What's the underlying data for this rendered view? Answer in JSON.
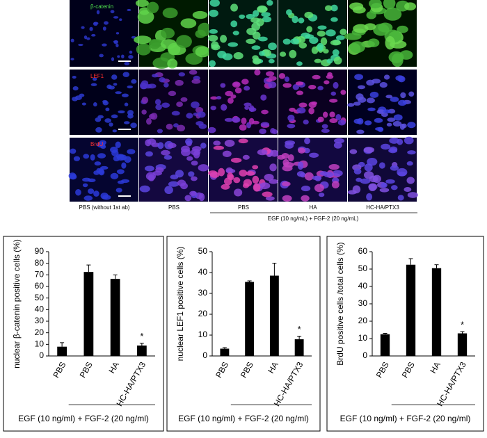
{
  "micrographs": {
    "row_labels": [
      "β-catenin",
      "LEF1",
      "BrdU"
    ],
    "column_labels": [
      "PBS (without 1st ab)",
      "PBS",
      "PBS",
      "HA",
      "HC-HA/PTX3"
    ],
    "group_label": "EGF (10 ng/mL) + FGF-2 (20 ng/mL)"
  },
  "chart_data": [
    {
      "type": "bar",
      "y_label": "nuclear β-catenin positive cells (%)",
      "categories": [
        "PBS",
        "PBS",
        "HA",
        "HC-HA/PTX3"
      ],
      "values": [
        8,
        72.5,
        66.5,
        9
      ],
      "errors": [
        3.5,
        6,
        3.5,
        2
      ],
      "color": "#000000",
      "ylim": [
        0,
        90
      ],
      "yticks": [
        0,
        10,
        20,
        30,
        40,
        50,
        60,
        70,
        80,
        90
      ],
      "annotation": "*",
      "group_label": "EGF (10 ng/ml) + FGF-2 (20 ng/ml)"
    },
    {
      "type": "bar",
      "y_label": "nuclear LEF1 positive cells (%)",
      "categories": [
        "PBS",
        "PBS",
        "HA",
        "HC-HA/PTX3"
      ],
      "values": [
        3.5,
        35.5,
        38.5,
        8
      ],
      "errors": [
        0.5,
        0.5,
        6,
        1.5
      ],
      "color": "#000000",
      "ylim": [
        0,
        50
      ],
      "yticks": [
        0,
        10,
        20,
        30,
        40,
        50
      ],
      "annotation": "*",
      "group_label": "EGF (10 ng/ml) + FGF-2 (20 ng/ml)"
    },
    {
      "type": "bar",
      "y_label": "BrdU positive cells /total cells (%)",
      "categories": [
        "PBS",
        "PBS",
        "HA",
        "HC-HA/PTX3"
      ],
      "values": [
        12.5,
        52.5,
        50.5,
        13
      ],
      "errors": [
        0.5,
        3.5,
        2,
        1
      ],
      "color": "#000000",
      "ylim": [
        0,
        60
      ],
      "yticks": [
        0,
        10,
        20,
        30,
        40,
        50,
        60
      ],
      "annotation": "*",
      "group_label": "EGF (10 ng/ml) + FGF-2 (20 ng/ml)"
    }
  ]
}
